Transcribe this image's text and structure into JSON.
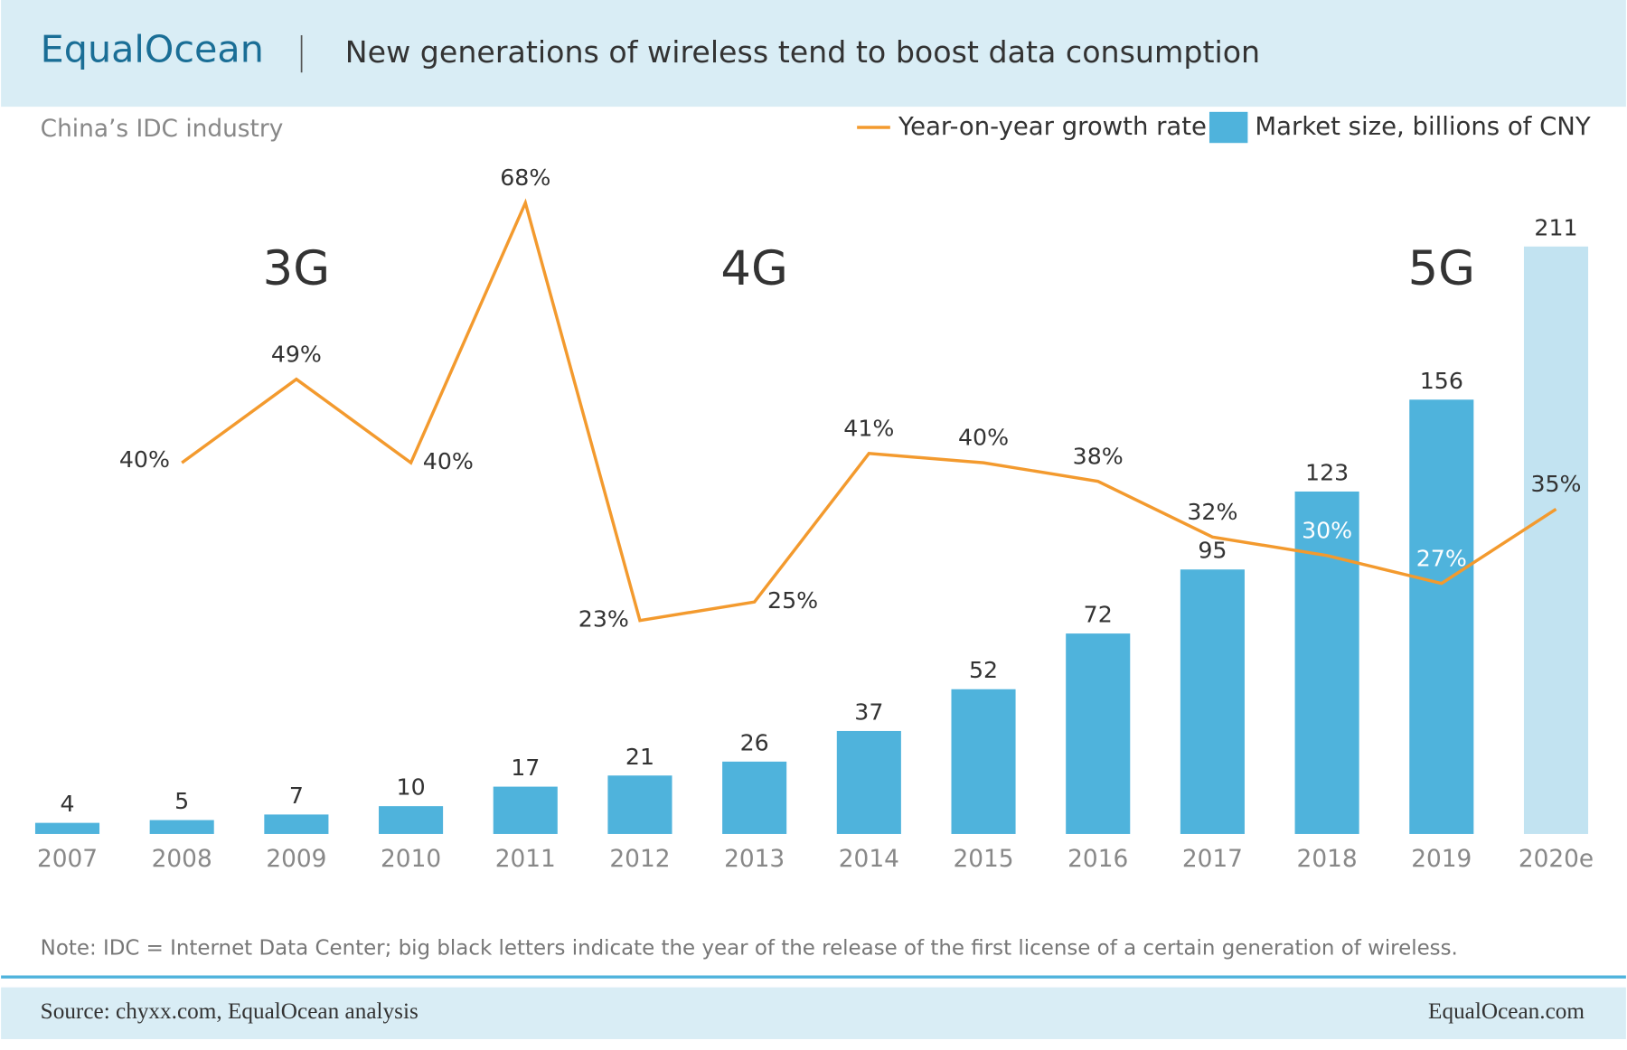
{
  "header": {
    "logo": "EqualOcean",
    "title": "New generations of wireless tend to boost data consumption"
  },
  "chart_data": {
    "type": "bar-line",
    "subtitle": "China’s IDC industry",
    "categories": [
      "2007",
      "2008",
      "2009",
      "2010",
      "2011",
      "2012",
      "2013",
      "2014",
      "2015",
      "2016",
      "2017",
      "2018",
      "2019",
      "2020e"
    ],
    "series": [
      {
        "name": "Year-on-year growth rate",
        "type": "line",
        "axis": "y2",
        "color": "#f39a2e",
        "values": [
          null,
          40,
          49,
          40,
          68,
          23,
          25,
          41,
          40,
          38,
          32,
          30,
          27,
          35
        ],
        "value_labels": [
          null,
          "40%",
          "49%",
          "40%",
          "68%",
          "23%",
          "25%",
          "41%",
          "40%",
          "38%",
          "32%",
          "30%",
          "27%",
          "35%"
        ]
      },
      {
        "name": "Market size, billions of CNY",
        "type": "bar",
        "color": "#4fb3dc",
        "colors": [
          "#4fb3dc",
          "#4fb3dc",
          "#4fb3dc",
          "#4fb3dc",
          "#4fb3dc",
          "#4fb3dc",
          "#4fb3dc",
          "#4fb3dc",
          "#4fb3dc",
          "#4fb3dc",
          "#4fb3dc",
          "#4fb3dc",
          "#4fb3dc",
          "#c2e3f1"
        ],
        "values": [
          4,
          5,
          7,
          10,
          17,
          21,
          26,
          37,
          52,
          72,
          95,
          123,
          156,
          211
        ]
      }
    ],
    "ylim": [
      0,
      240
    ],
    "y2lim": [
      0,
      72
    ],
    "annotations": [
      {
        "text": "3G",
        "x": "2009"
      },
      {
        "text": "4G",
        "x": "2013"
      },
      {
        "text": "5G",
        "x": "2019"
      }
    ],
    "note": "Note: IDC = Internet Data Center; big black letters indicate the year of the release of the first license of a certain generation of wireless."
  },
  "footer": {
    "source": "Source: chyxx.com, EqualOcean analysis",
    "site": "EqualOcean.com"
  }
}
